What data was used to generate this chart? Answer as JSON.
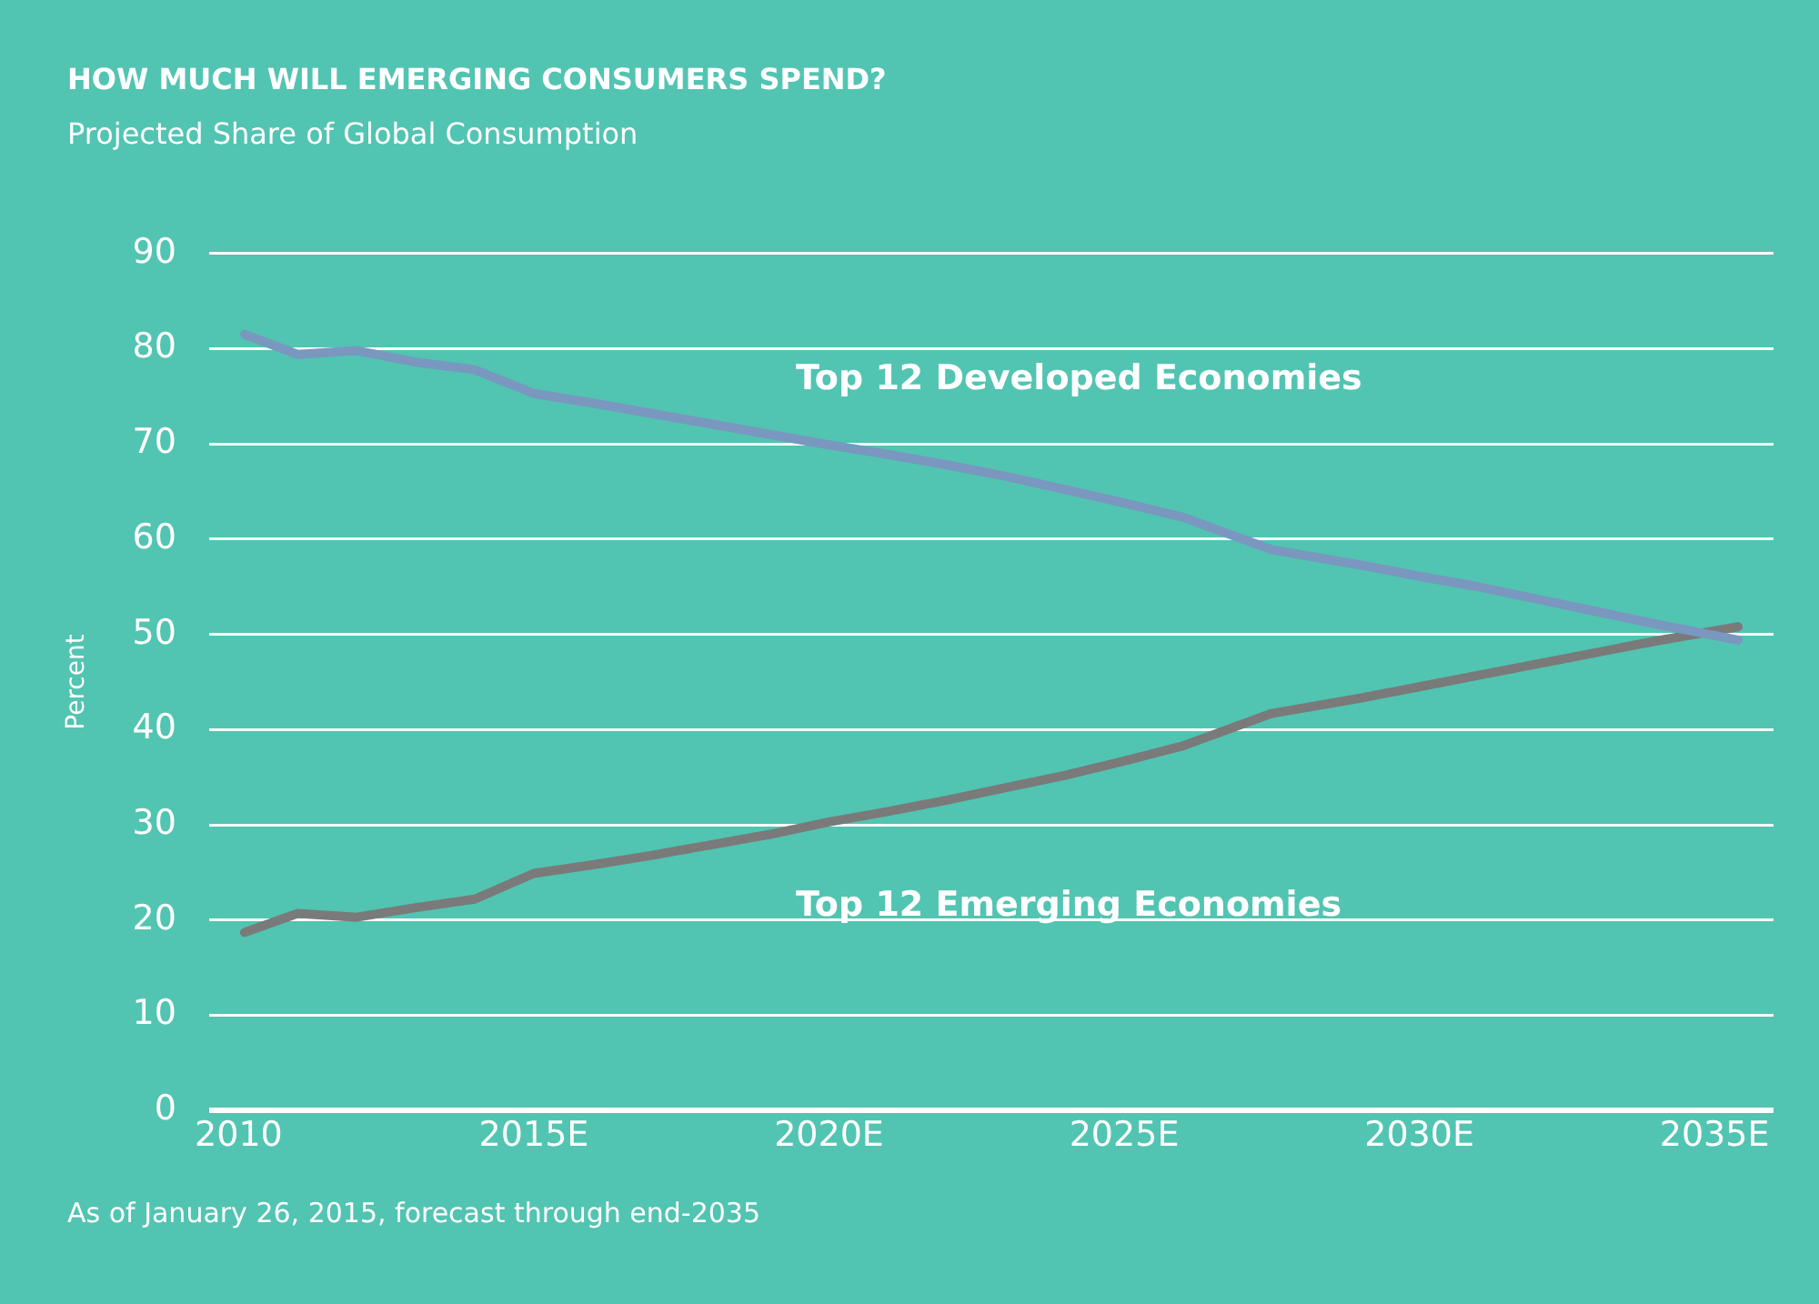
{
  "chart_data": {
    "type": "line",
    "title": "HOW MUCH WILL EMERGING CONSUMERS SPEND?",
    "subtitle": "Projected Share of Global Consumption",
    "ylabel": "Percent",
    "annotations": [
      "As of January 26, 2015, forecast through end-2035"
    ],
    "xlim": [
      2009.5,
      2036
    ],
    "xticks": [
      {
        "value": 2010,
        "label": "2010"
      },
      {
        "value": 2015,
        "label": "2015E"
      },
      {
        "value": 2020,
        "label": "2020E"
      },
      {
        "value": 2025,
        "label": "2025E"
      },
      {
        "value": 2030,
        "label": "2030E"
      },
      {
        "value": 2035,
        "label": "2035E"
      }
    ],
    "ylim": [
      0,
      90
    ],
    "yticks": [
      0,
      10,
      20,
      30,
      40,
      50,
      60,
      70,
      80,
      90
    ],
    "grid": "y",
    "legend": false,
    "marker": "none",
    "line_style": "solid",
    "series": [
      {
        "name": "Top 12 Developed Economies",
        "color": "#7a97bf",
        "x": [
          2010.1,
          2011,
          2012,
          2013,
          2014,
          2015,
          2016,
          2017,
          2018,
          2019,
          2020,
          2021,
          2022,
          2023,
          2024,
          2025,
          2026,
          2027.5,
          2029,
          2030,
          2031,
          2032,
          2033,
          2034,
          2035.4
        ],
        "values": [
          81.5,
          79.4,
          79.8,
          78.6,
          77.8,
          75.3,
          74.3,
          73.2,
          72.1,
          71.0,
          69.9,
          68.9,
          67.8,
          66.6,
          65.2,
          63.8,
          62.3,
          58.9,
          57.3,
          56.1,
          55.0,
          53.7,
          52.4,
          51.1,
          49.4
        ]
      },
      {
        "name": "Top 12 Emerging Economies",
        "color": "#7a7a7a",
        "x": [
          2010.1,
          2011,
          2012,
          2013,
          2014,
          2015,
          2016,
          2017,
          2018,
          2019,
          2020,
          2021,
          2022,
          2023,
          2024,
          2025,
          2026,
          2027.5,
          2029,
          2030,
          2031,
          2032,
          2033,
          2034,
          2035.4
        ],
        "values": [
          18.7,
          20.7,
          20.3,
          21.3,
          22.2,
          24.9,
          25.8,
          26.8,
          27.9,
          29.0,
          30.3,
          31.4,
          32.6,
          33.9,
          35.2,
          36.7,
          38.3,
          41.7,
          43.3,
          44.5,
          45.7,
          46.9,
          48.1,
          49.3,
          50.8
        ]
      }
    ]
  }
}
